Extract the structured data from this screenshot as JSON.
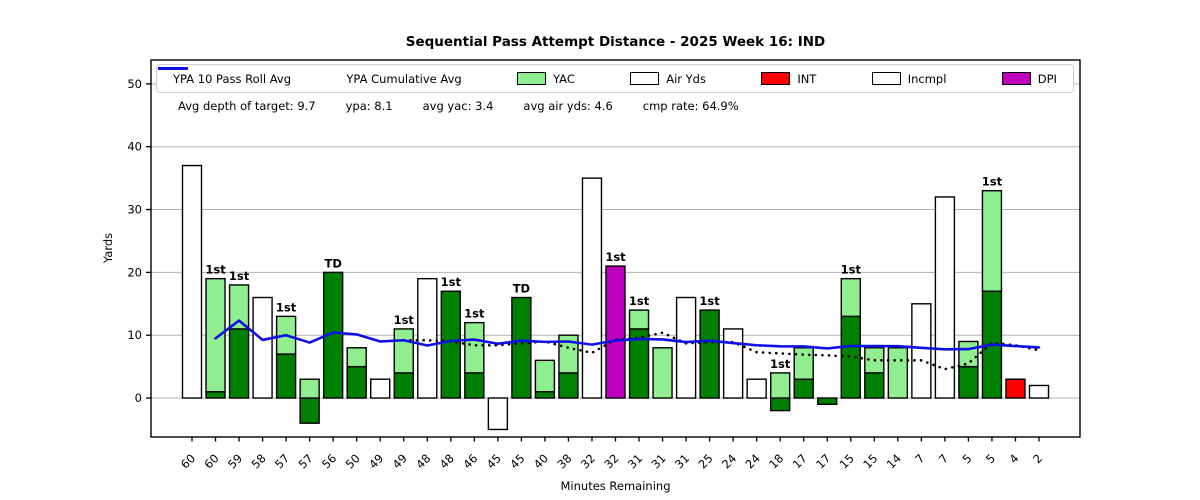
{
  "title": "Sequential Pass Attempt Distance - 2025 Week 16: IND",
  "stats": {
    "adot": "Avg depth of target: 9.7",
    "ypa": "ypa: 8.1",
    "avg_yac": "avg yac: 3.4",
    "avg_air_yds": "avg air yds: 4.6",
    "cmp_rate": "cmp rate: 64.9%"
  },
  "legend": {
    "items": [
      {
        "label": "YPA 10 Pass Roll Avg",
        "marker": "dotted-black-line",
        "color": "#000000"
      },
      {
        "label": "YPA Cumulative Avg",
        "marker": "solid-blue-line",
        "color": "#0f0fe8"
      },
      {
        "label": "YAC",
        "marker": "patch",
        "color": "#90ee90"
      },
      {
        "label": "Air Yds",
        "marker": "patch",
        "color": "#ffffff"
      },
      {
        "label": "INT",
        "marker": "patch",
        "color": "#ff0000"
      },
      {
        "label": "Incmpl",
        "marker": "patch",
        "color": "#ffffff"
      },
      {
        "label": "DPI",
        "marker": "patch",
        "color": "#bf00bf"
      }
    ]
  },
  "chart_data": {
    "type": "stacked-bar+line",
    "title": "Sequential Pass Attempt Distance - 2025 Week 16: IND",
    "xlabel": "Minutes Remaining",
    "ylabel": "Yards",
    "ylim": [
      -6.2,
      53.8
    ],
    "yticks": [
      0,
      10,
      20,
      30,
      40,
      50
    ],
    "grid": true,
    "legend_position": "top-inside",
    "colors": {
      "cmp_air": "#008000",
      "yac": "#90ee90",
      "incmpl": "#ffffff",
      "int": "#ff0000",
      "dpi": "#bf00bf",
      "line_blue": "#0f0fe8",
      "line_dotted": "#000000",
      "grid": "#b3b3b3"
    },
    "categories": [
      "60",
      "60",
      "59",
      "58",
      "57",
      "57",
      "56",
      "50",
      "49",
      "49",
      "48",
      "48",
      "46",
      "45",
      "45",
      "40",
      "38",
      "32",
      "32",
      "31",
      "31",
      "31",
      "25",
      "24",
      "24",
      "18",
      "17",
      "17",
      "15",
      "15",
      "14",
      "7",
      "7",
      "5",
      "5",
      "4",
      "2"
    ],
    "bars": [
      {
        "min": "60",
        "segs": [
          [
            "incmpl",
            0,
            37
          ]
        ],
        "tag": ""
      },
      {
        "min": "60",
        "segs": [
          [
            "cmp_air",
            0,
            1
          ],
          [
            "yac",
            1,
            19
          ]
        ],
        "tag": "1st"
      },
      {
        "min": "59",
        "segs": [
          [
            "cmp_air",
            0,
            11
          ],
          [
            "yac",
            11,
            18
          ]
        ],
        "tag": "1st"
      },
      {
        "min": "58",
        "segs": [
          [
            "incmpl",
            0,
            16
          ]
        ],
        "tag": ""
      },
      {
        "min": "57",
        "segs": [
          [
            "cmp_air",
            0,
            7
          ],
          [
            "yac",
            7,
            13
          ]
        ],
        "tag": "1st"
      },
      {
        "min": "57",
        "segs": [
          [
            "cmp_air",
            -4,
            0
          ],
          [
            "yac",
            0,
            3
          ]
        ],
        "tag": ""
      },
      {
        "min": "56",
        "segs": [
          [
            "cmp_air",
            0,
            20
          ]
        ],
        "tag": "TD"
      },
      {
        "min": "50",
        "segs": [
          [
            "cmp_air",
            0,
            5
          ],
          [
            "yac",
            5,
            8
          ]
        ],
        "tag": ""
      },
      {
        "min": "49",
        "segs": [
          [
            "incmpl",
            0,
            3
          ]
        ],
        "tag": ""
      },
      {
        "min": "49",
        "segs": [
          [
            "cmp_air",
            0,
            4
          ],
          [
            "yac",
            4,
            11
          ]
        ],
        "tag": "1st"
      },
      {
        "min": "48",
        "segs": [
          [
            "incmpl",
            0,
            19
          ]
        ],
        "tag": ""
      },
      {
        "min": "48",
        "segs": [
          [
            "cmp_air",
            0,
            17
          ]
        ],
        "tag": "1st"
      },
      {
        "min": "46",
        "segs": [
          [
            "cmp_air",
            0,
            4
          ],
          [
            "yac",
            4,
            12
          ]
        ],
        "tag": "1st"
      },
      {
        "min": "45",
        "segs": [
          [
            "incmpl",
            -5,
            0
          ]
        ],
        "tag": ""
      },
      {
        "min": "45",
        "segs": [
          [
            "cmp_air",
            0,
            16
          ]
        ],
        "tag": "TD"
      },
      {
        "min": "40",
        "segs": [
          [
            "cmp_air",
            0,
            1
          ],
          [
            "yac",
            1,
            6
          ]
        ],
        "tag": ""
      },
      {
        "min": "38",
        "segs": [
          [
            "cmp_air",
            0,
            4
          ],
          [
            "yac",
            4,
            10
          ]
        ],
        "tag": ""
      },
      {
        "min": "32",
        "segs": [
          [
            "incmpl",
            0,
            35
          ]
        ],
        "tag": ""
      },
      {
        "min": "32",
        "segs": [
          [
            "dpi",
            0,
            21
          ]
        ],
        "tag": "1st"
      },
      {
        "min": "31",
        "segs": [
          [
            "cmp_air",
            0,
            11
          ],
          [
            "yac",
            11,
            14
          ]
        ],
        "tag": "1st"
      },
      {
        "min": "31",
        "segs": [
          [
            "yac",
            0,
            8
          ]
        ],
        "tag": ""
      },
      {
        "min": "31",
        "segs": [
          [
            "incmpl",
            0,
            16
          ]
        ],
        "tag": ""
      },
      {
        "min": "25",
        "segs": [
          [
            "cmp_air",
            0,
            14
          ]
        ],
        "tag": "1st"
      },
      {
        "min": "24",
        "segs": [
          [
            "incmpl",
            0,
            11
          ]
        ],
        "tag": ""
      },
      {
        "min": "24",
        "segs": [
          [
            "incmpl",
            0,
            3
          ]
        ],
        "tag": ""
      },
      {
        "min": "18",
        "segs": [
          [
            "cmp_air",
            -2,
            0
          ],
          [
            "yac",
            0,
            4
          ]
        ],
        "tag": "1st"
      },
      {
        "min": "17",
        "segs": [
          [
            "cmp_air",
            0,
            3
          ],
          [
            "yac",
            3,
            8
          ]
        ],
        "tag": ""
      },
      {
        "min": "17",
        "segs": [
          [
            "cmp_air",
            -1,
            0
          ]
        ],
        "tag": ""
      },
      {
        "min": "15",
        "segs": [
          [
            "cmp_air",
            0,
            13
          ],
          [
            "yac",
            13,
            19
          ]
        ],
        "tag": "1st"
      },
      {
        "min": "15",
        "segs": [
          [
            "cmp_air",
            0,
            4
          ],
          [
            "yac",
            4,
            8
          ]
        ],
        "tag": ""
      },
      {
        "min": "14",
        "segs": [
          [
            "yac",
            0,
            8
          ]
        ],
        "tag": ""
      },
      {
        "min": "7",
        "segs": [
          [
            "incmpl",
            0,
            15
          ]
        ],
        "tag": ""
      },
      {
        "min": "7",
        "segs": [
          [
            "incmpl",
            0,
            32
          ]
        ],
        "tag": ""
      },
      {
        "min": "5",
        "segs": [
          [
            "cmp_air",
            0,
            5
          ],
          [
            "yac",
            5,
            9
          ]
        ],
        "tag": ""
      },
      {
        "min": "5",
        "segs": [
          [
            "cmp_air",
            0,
            17
          ],
          [
            "yac",
            17,
            33
          ]
        ],
        "tag": "1st"
      },
      {
        "min": "4",
        "segs": [
          [
            "int",
            0,
            3
          ]
        ],
        "tag": ""
      },
      {
        "min": "2",
        "segs": [
          [
            "incmpl",
            0,
            2
          ]
        ],
        "tag": ""
      }
    ],
    "series": [
      {
        "name": "YPA Cumulative Avg",
        "style": "solid-blue",
        "start_index": 1,
        "values": [
          9.5,
          12.33,
          9.25,
          10.0,
          8.83,
          10.43,
          10.13,
          9.0,
          9.2,
          8.36,
          9.08,
          9.31,
          8.64,
          9.13,
          8.94,
          9.0,
          8.5,
          9.16,
          9.4,
          9.33,
          8.91,
          9.13,
          8.75,
          8.4,
          8.23,
          8.22,
          7.89,
          8.28,
          8.27,
          8.26,
          8.0,
          7.76,
          7.79,
          8.51,
          8.28,
          8.05
        ]
      },
      {
        "name": "YPA 10 Pass Roll Avg",
        "style": "dotted-black",
        "start_index": 9,
        "values": [
          9.2,
          9.2,
          9.0,
          8.4,
          8.4,
          8.7,
          9.0,
          8.0,
          7.2,
          9.3,
          9.6,
          10.4,
          8.7,
          8.9,
          8.9,
          7.3,
          7.1,
          6.9,
          6.8,
          6.6,
          6.0,
          6.0,
          6.0,
          4.6,
          5.5,
          8.8,
          8.4,
          7.6
        ]
      }
    ]
  }
}
